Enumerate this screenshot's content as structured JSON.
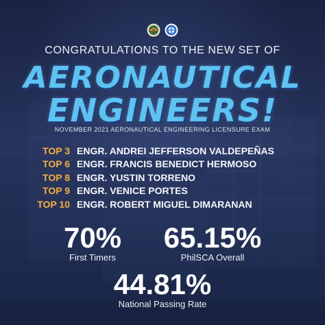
{
  "colors": {
    "accent_blue": "#5ec2f2",
    "rank_gold": "#f3b13f",
    "background": "#27345c"
  },
  "header": {
    "congrats": "CONGRATULATIONS TO THE NEW SET OF",
    "headline_line1": "AERONAUTICAL",
    "headline_line2": "ENGINEERS!",
    "subtitle": "NOVEMBER 2021 AERONAUTICAL ENGINEERING LICENSURE EXAM"
  },
  "logos": [
    "seal-logo",
    "philsca-logo"
  ],
  "top_passers": [
    {
      "rank": "TOP 3",
      "name": "ENGR. ANDREI JEFFERSON VALDEPEÑAS"
    },
    {
      "rank": "TOP 6",
      "name": "ENGR. FRANCIS BENEDICT HERMOSO"
    },
    {
      "rank": "TOP 8",
      "name": "ENGR. YUSTIN TORRENO"
    },
    {
      "rank": "TOP 9",
      "name": "ENGR. VENICE PORTES"
    },
    {
      "rank": "TOP 10",
      "name": "ENGR. ROBERT MIGUEL DIMARANAN"
    }
  ],
  "stats": {
    "first_timers": {
      "value": "70%",
      "label": "First Timers"
    },
    "philsca_overall": {
      "value": "65.15%",
      "label": "PhilSCA Overall"
    },
    "national": {
      "value": "44.81%",
      "label": "National Passing Rate"
    }
  }
}
